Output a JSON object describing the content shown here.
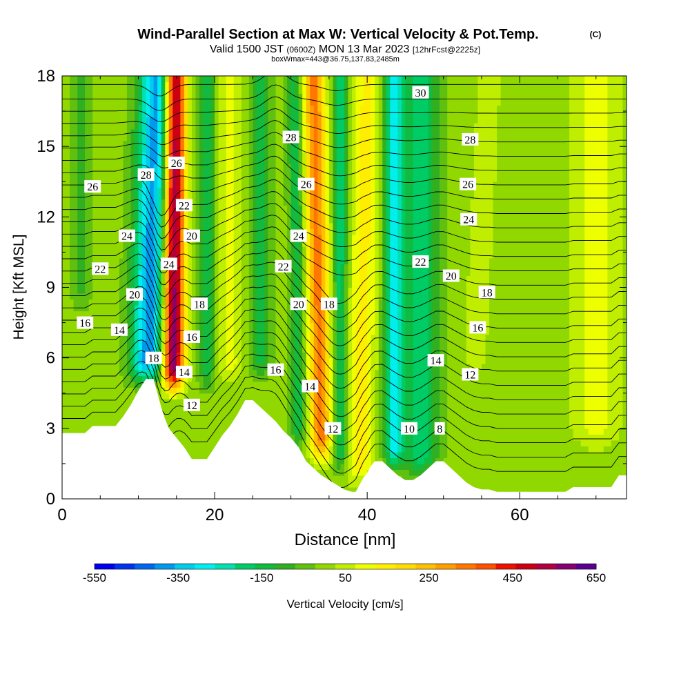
{
  "chart_data": {
    "type": "heatmap",
    "title": "Wind-Parallel Section at Max W: Vertical Velocity & Pot.Temp.",
    "title_mark": "(C)",
    "subtitle_pre": "Valid 1500 JST",
    "subtitle_utc": "(0600Z)",
    "subtitle_post": "MON 13 Mar 2023",
    "subtitle_fcst": "[12hrFcst@2225z]",
    "subtitle2": "boxWmax=443@36.75,137.83,2485m",
    "xlabel": "Distance [nm]",
    "ylabel": "Height [Kft MSL]",
    "xlim": [
      0,
      74
    ],
    "ylim": [
      0,
      18
    ],
    "x_ticks": [
      "0",
      "20",
      "40",
      "60"
    ],
    "x_tick_values": [
      0,
      20,
      40,
      60
    ],
    "y_ticks": [
      "0",
      "3",
      "6",
      "9",
      "12",
      "15",
      "18"
    ],
    "y_tick_values": [
      0,
      3,
      6,
      9,
      12,
      15,
      18
    ],
    "colorbar": {
      "label": "Vertical Velocity [cm/s]",
      "tick_labels": [
        "-550",
        "-350",
        "-150",
        "50",
        "250",
        "450",
        "650"
      ],
      "tick_values": [
        -550,
        -350,
        -150,
        50,
        250,
        450,
        650
      ],
      "levels": [
        -550,
        -500,
        -450,
        -400,
        -350,
        -300,
        -250,
        -200,
        -150,
        -100,
        -50,
        0,
        50,
        100,
        150,
        200,
        250,
        300,
        350,
        400,
        450,
        500,
        550,
        600,
        650
      ],
      "colors": [
        "#0000ee",
        "#0033ee",
        "#0066ee",
        "#0099ee",
        "#00ccee",
        "#00eeee",
        "#00e0b0",
        "#00cc66",
        "#10bb40",
        "#30b020",
        "#60c010",
        "#90d800",
        "#c0ee00",
        "#eeff00",
        "#ffee00",
        "#ffdd00",
        "#ffc000",
        "#ff9e00",
        "#ff7700",
        "#ff5000",
        "#ee1000",
        "#cc0010",
        "#b00040",
        "#880070",
        "#5a0090"
      ]
    },
    "terrain_profile": {
      "x": [
        0,
        3,
        4,
        7,
        8,
        9,
        10,
        11,
        12,
        12.5,
        13,
        13.5,
        14,
        15,
        16,
        17,
        19,
        20,
        21,
        22,
        23,
        24,
        25,
        26,
        27,
        28,
        29,
        30,
        31,
        32,
        33,
        34,
        35,
        36,
        37,
        38,
        38.5,
        39,
        39.5,
        40,
        40.5,
        41,
        42,
        43,
        44,
        45,
        46,
        47,
        48,
        49,
        50,
        51,
        52,
        53,
        54,
        55,
        56,
        57,
        58,
        60,
        62,
        64,
        66,
        67,
        68,
        70,
        72,
        73,
        74
      ],
      "y": [
        2.8,
        2.8,
        3.1,
        3.1,
        3.5,
        4.0,
        4.6,
        5.1,
        5.1,
        4.5,
        3.9,
        3.4,
        3.0,
        2.6,
        2.2,
        1.7,
        1.7,
        2.2,
        2.7,
        3.1,
        3.6,
        4.2,
        4.2,
        3.9,
        3.6,
        3.3,
        2.9,
        2.6,
        2.2,
        1.6,
        1.3,
        1.0,
        0.8,
        0.6,
        0.4,
        0.3,
        0.3,
        0.6,
        0.9,
        1.1,
        1.4,
        1.6,
        1.6,
        1.3,
        1.0,
        0.8,
        0.8,
        1.0,
        1.3,
        1.6,
        1.6,
        1.3,
        1.0,
        0.7,
        0.5,
        0.4,
        0.4,
        0.3,
        0.3,
        0.3,
        0.3,
        0.3,
        0.3,
        0.5,
        0.5,
        0.5,
        0.5,
        1.0,
        1.0
      ]
    },
    "w_features": [
      {
        "x": 14.5,
        "x_top": 14.8,
        "y_bottom": 4.5,
        "half_width": 1.4,
        "value": 650
      },
      {
        "x": 11.2,
        "x_top": 12.5,
        "y_bottom": 4.8,
        "half_width": 2.3,
        "value": -400
      },
      {
        "x": 19.0,
        "x_top": 19.0,
        "y_bottom": 4.5,
        "half_width": 1.0,
        "value": -150
      },
      {
        "x": 22.0,
        "x_top": 22.0,
        "y_bottom": 4.8,
        "half_width": 1.6,
        "value": 100
      },
      {
        "x": 26.0,
        "x_top": 26.0,
        "y_bottom": 5.0,
        "half_width": 1.3,
        "value": -150
      },
      {
        "x": 31.0,
        "x_top": 30.5,
        "y_bottom": 2.0,
        "half_width": 1.0,
        "value": -150
      },
      {
        "x": 34.0,
        "x_top": 33.0,
        "y_bottom": 1.5,
        "half_width": 1.4,
        "value": 350
      },
      {
        "x": 36.5,
        "x_top": 36.5,
        "y_bottom": 1.0,
        "half_width": 0.9,
        "value": -200
      },
      {
        "x": 39.0,
        "x_top": 40.0,
        "y_bottom": 0.5,
        "half_width": 1.8,
        "value": 150
      },
      {
        "x": 43.5,
        "x_top": 43.5,
        "y_bottom": 1.2,
        "half_width": 1.3,
        "value": -300
      },
      {
        "x": 47.0,
        "x_top": 47.0,
        "y_bottom": 0.8,
        "half_width": 2.2,
        "value": -200
      },
      {
        "x": 54.0,
        "x_top": 56.0,
        "y_bottom": 5.0,
        "half_width": 2.0,
        "value": 50
      },
      {
        "x": 2.5,
        "x_top": 2.5,
        "y_bottom": 8.0,
        "half_width": 1.2,
        "value": -100
      },
      {
        "x": 70.0,
        "x_top": 70.0,
        "y_bottom": 2.0,
        "half_width": 3.0,
        "value": 100
      }
    ],
    "contour_labels": [
      {
        "text": "30",
        "x": 47.0,
        "y": 17.3
      },
      {
        "text": "28",
        "x": 30.0,
        "y": 15.4
      },
      {
        "text": "28",
        "x": 53.5,
        "y": 15.3
      },
      {
        "text": "26",
        "x": 4.0,
        "y": 13.3
      },
      {
        "text": "28",
        "x": 11.0,
        "y": 13.8
      },
      {
        "text": "26",
        "x": 15.0,
        "y": 14.3
      },
      {
        "text": "26",
        "x": 32.0,
        "y": 13.4
      },
      {
        "text": "26",
        "x": 53.2,
        "y": 13.4
      },
      {
        "text": "22",
        "x": 16.0,
        "y": 12.5
      },
      {
        "text": "24",
        "x": 53.3,
        "y": 11.9
      },
      {
        "text": "24",
        "x": 8.5,
        "y": 11.2
      },
      {
        "text": "20",
        "x": 17.0,
        "y": 11.2
      },
      {
        "text": "24",
        "x": 31.0,
        "y": 11.2
      },
      {
        "text": "24",
        "x": 14.0,
        "y": 10.0
      },
      {
        "text": "22",
        "x": 5.0,
        "y": 9.8
      },
      {
        "text": "22",
        "x": 29.0,
        "y": 9.9
      },
      {
        "text": "22",
        "x": 47.0,
        "y": 10.1
      },
      {
        "text": "20",
        "x": 51.0,
        "y": 9.5
      },
      {
        "text": "20",
        "x": 9.5,
        "y": 8.7
      },
      {
        "text": "18",
        "x": 55.7,
        "y": 8.8
      },
      {
        "text": "18",
        "x": 18.0,
        "y": 8.3
      },
      {
        "text": "20",
        "x": 31.0,
        "y": 8.3
      },
      {
        "text": "18",
        "x": 35.0,
        "y": 8.3
      },
      {
        "text": "16",
        "x": 3.0,
        "y": 7.5
      },
      {
        "text": "16",
        "x": 54.5,
        "y": 7.3
      },
      {
        "text": "14",
        "x": 7.5,
        "y": 7.2
      },
      {
        "text": "16",
        "x": 17.0,
        "y": 6.9
      },
      {
        "text": "18",
        "x": 12.0,
        "y": 6.0
      },
      {
        "text": "14",
        "x": 49.0,
        "y": 5.9
      },
      {
        "text": "14",
        "x": 16.0,
        "y": 5.4
      },
      {
        "text": "16",
        "x": 28.0,
        "y": 5.5
      },
      {
        "text": "12",
        "x": 53.5,
        "y": 5.3
      },
      {
        "text": "14",
        "x": 32.5,
        "y": 4.8
      },
      {
        "text": "12",
        "x": 17.0,
        "y": 4.0
      },
      {
        "text": "12",
        "x": 35.5,
        "y": 3.0
      },
      {
        "text": "10",
        "x": 45.5,
        "y": 3.0
      },
      {
        "text": "8",
        "x": 49.5,
        "y": 3.0
      }
    ]
  }
}
